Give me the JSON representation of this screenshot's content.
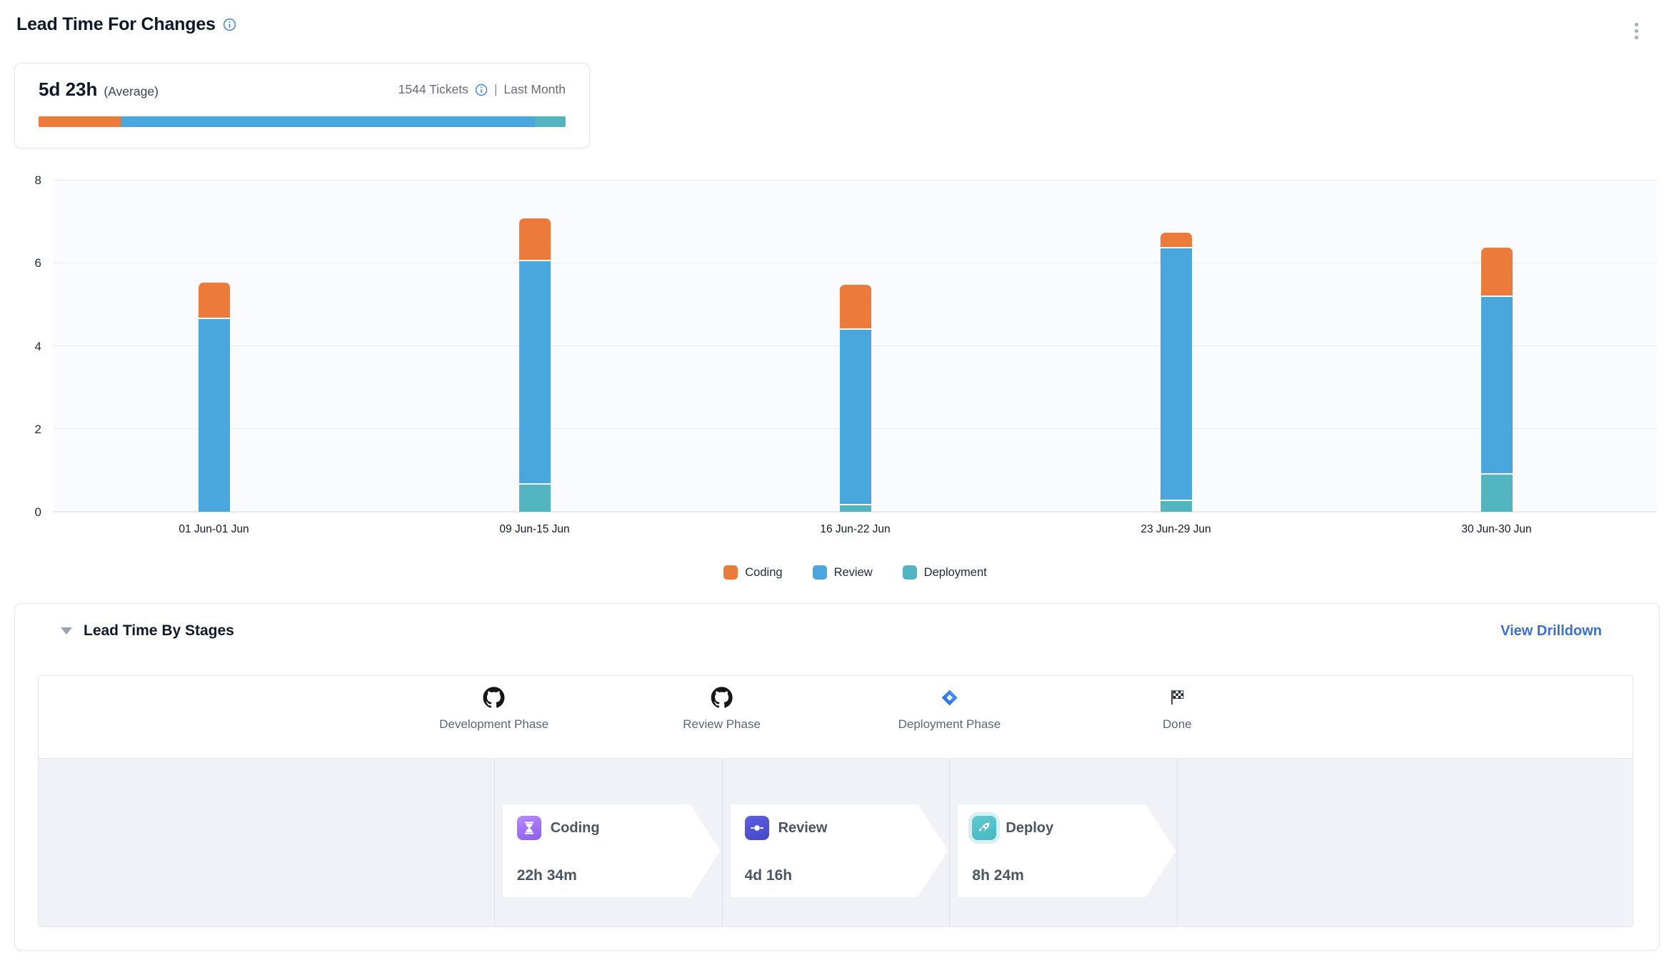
{
  "header": {
    "title": "Lead Time For Changes"
  },
  "summary": {
    "average_value": "5d 23h",
    "average_label": "(Average)",
    "tickets_label": "1544 Tickets",
    "divider": "|",
    "period_label": "Last Month",
    "distribution": [
      {
        "name": "Coding",
        "color": "#ec7a3b",
        "percent": 15.6
      },
      {
        "name": "Review",
        "color": "#4aa7dd",
        "percent": 78.6
      },
      {
        "name": "Deployment",
        "color": "#52b5c0",
        "percent": 5.8
      }
    ]
  },
  "chart_data": {
    "type": "bar",
    "stacked": true,
    "title": "Lead Time For Changes",
    "categories": [
      "01 Jun-01 Jun",
      "09 Jun-15 Jun",
      "16 Jun-22 Jun",
      "23 Jun-29 Jun",
      "30 Jun-30 Jun"
    ],
    "series": [
      {
        "name": "Coding",
        "color": "#ec7a3b",
        "values": [
          0.85,
          1.0,
          1.05,
          0.35,
          1.15
        ]
      },
      {
        "name": "Review",
        "color": "#4aa7dd",
        "values": [
          4.65,
          5.35,
          4.2,
          6.05,
          4.25
        ]
      },
      {
        "name": "Deployment",
        "color": "#52b5c0",
        "values": [
          0,
          0.65,
          0.15,
          0.25,
          0.9
        ]
      }
    ],
    "stack_order_bottom_to_top": [
      "Deployment",
      "Review",
      "Coding"
    ],
    "totals": [
      5.5,
      7.0,
      5.4,
      6.65,
      6.3
    ],
    "xlabel": "",
    "ylabel": "",
    "ylim": [
      0,
      8
    ],
    "yticks": [
      0,
      2,
      4,
      6,
      8
    ],
    "grid": true,
    "legend_position": "bottom"
  },
  "stages": {
    "title": "Lead Time By Stages",
    "drilldown_label": "View Drilldown",
    "milestones": [
      {
        "label": "Development Phase",
        "icon": "github-icon"
      },
      {
        "label": "Review Phase",
        "icon": "github-icon"
      },
      {
        "label": "Deployment Phase",
        "icon": "jira-icon"
      },
      {
        "label": "Done",
        "icon": "checkered-flag-icon"
      }
    ],
    "cards": [
      {
        "name": "Coding",
        "duration": "22h 34m",
        "icon": "hourglass-icon",
        "icon_color": "#8b5cf6"
      },
      {
        "name": "Review",
        "duration": "4d 16h",
        "icon": "commit-icon",
        "icon_color": "#4f51d8"
      },
      {
        "name": "Deploy",
        "duration": "8h 24m",
        "icon": "rocket-icon",
        "icon_color": "#4cc0c8"
      }
    ]
  }
}
